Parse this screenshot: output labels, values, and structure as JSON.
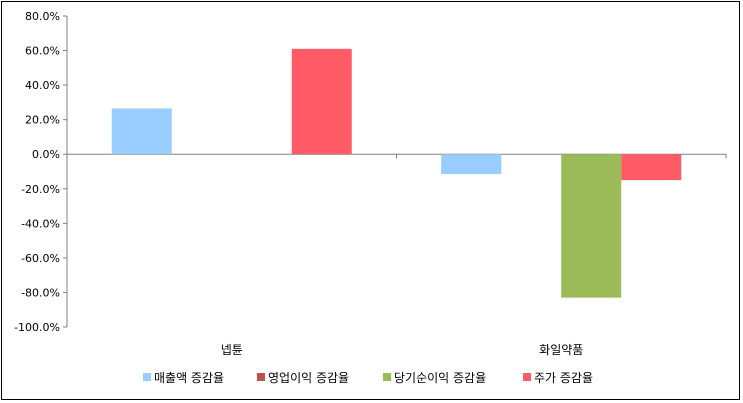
{
  "chart_data": {
    "type": "bar",
    "categories": [
      "넵튠",
      "화일약품"
    ],
    "series": [
      {
        "name": "매출액 증감율",
        "color": "#99CCFF",
        "values": [
          26.5,
          -11.5
        ]
      },
      {
        "name": "영업이익 증감율",
        "color": "#C0504D",
        "values": [
          0,
          0
        ]
      },
      {
        "name": "당기순이익 증감율",
        "color": "#9BBB59",
        "values": [
          0,
          -83.0
        ]
      },
      {
        "name": "주가 증감율",
        "color": "#FF5B66",
        "values": [
          61.0,
          -15.0
        ]
      }
    ],
    "ylim": [
      -100,
      80
    ],
    "yticks": [
      80,
      60,
      40,
      20,
      0,
      -20,
      -40,
      -60,
      -80,
      -100
    ],
    "ytick_labels": [
      "80.0%",
      "60.0%",
      "40.0%",
      "20.0%",
      "0.0%",
      "-20.0%",
      "-40.0%",
      "-60.0%",
      "-80.0%",
      "-100.0%"
    ],
    "legend_position": "bottom",
    "grid": false
  }
}
